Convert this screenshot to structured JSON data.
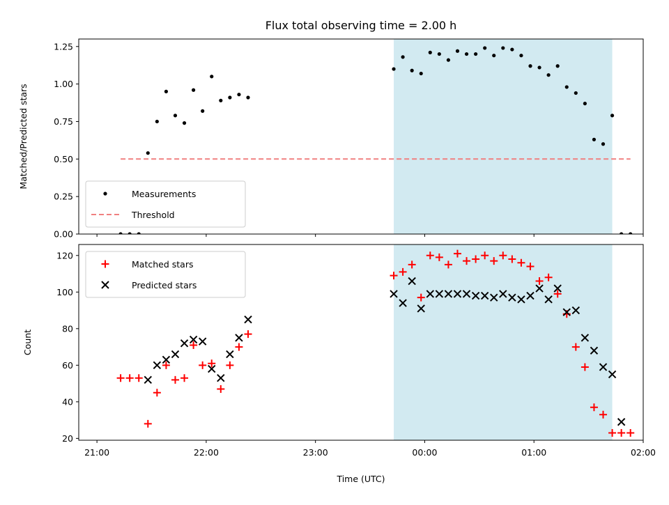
{
  "chart_data": {
    "title": "Flux total observing time = 2.00 h",
    "xlabel": "Time (UTC)",
    "x_tick_labels": [
      "21:00",
      "22:00",
      "23:00",
      "00:00",
      "01:00",
      "02:00"
    ],
    "shaded_interval": {
      "start": "23:43",
      "end": "01:43",
      "color": "#add8e6"
    },
    "panels": [
      {
        "type": "scatter",
        "ylabel": "Matched/Predicted stars",
        "ylim": [
          0,
          1.3
        ],
        "y_tick_labels": [
          "0.00",
          "0.25",
          "0.50",
          "0.75",
          "1.00",
          "1.25"
        ],
        "y_ticks": [
          0,
          0.25,
          0.5,
          0.75,
          1.0,
          1.25
        ],
        "legend_position": "lower-left",
        "series": [
          {
            "name": "Measurements",
            "marker": "dot",
            "color": "#000000",
            "points": [
              [
                "21:13",
                0
              ],
              [
                "21:18",
                0
              ],
              [
                "21:23",
                0
              ],
              [
                "21:28",
                0.54
              ],
              [
                "21:33",
                0.75
              ],
              [
                "21:38",
                0.95
              ],
              [
                "21:43",
                0.79
              ],
              [
                "21:48",
                0.74
              ],
              [
                "21:53",
                0.96
              ],
              [
                "21:58",
                0.82
              ],
              [
                "22:03",
                1.05
              ],
              [
                "22:08",
                0.89
              ],
              [
                "22:13",
                0.91
              ],
              [
                "22:18",
                0.93
              ],
              [
                "22:23",
                0.91
              ],
              [
                "23:43",
                1.1
              ],
              [
                "23:48",
                1.18
              ],
              [
                "23:53",
                1.09
              ],
              [
                "23:58",
                1.07
              ],
              [
                "00:03",
                1.21
              ],
              [
                "00:08",
                1.2
              ],
              [
                "00:13",
                1.16
              ],
              [
                "00:18",
                1.22
              ],
              [
                "00:23",
                1.2
              ],
              [
                "00:28",
                1.2
              ],
              [
                "00:33",
                1.24
              ],
              [
                "00:38",
                1.19
              ],
              [
                "00:43",
                1.24
              ],
              [
                "00:48",
                1.23
              ],
              [
                "00:53",
                1.19
              ],
              [
                "00:58",
                1.12
              ],
              [
                "01:03",
                1.11
              ],
              [
                "01:08",
                1.06
              ],
              [
                "01:13",
                1.12
              ],
              [
                "01:18",
                0.98
              ],
              [
                "01:23",
                0.94
              ],
              [
                "01:28",
                0.87
              ],
              [
                "01:33",
                0.63
              ],
              [
                "01:38",
                0.6
              ],
              [
                "01:43",
                0.79
              ],
              [
                "01:48",
                0
              ],
              [
                "01:53",
                0
              ]
            ]
          },
          {
            "name": "Threshold",
            "marker": "dashed-line",
            "color": "#f08080",
            "points": [
              [
                "21:13",
                0.5
              ],
              [
                "01:53",
                0.5
              ]
            ]
          }
        ]
      },
      {
        "type": "scatter",
        "ylabel": "Count",
        "ylim": [
          19,
          126
        ],
        "y_tick_labels": [
          "20",
          "40",
          "60",
          "80",
          "100",
          "120"
        ],
        "y_ticks": [
          20,
          40,
          60,
          80,
          100,
          120
        ],
        "legend_position": "upper-left",
        "series": [
          {
            "name": "Matched stars",
            "marker": "plus",
            "color": "#ff0000",
            "points": [
              [
                "21:13",
                53
              ],
              [
                "21:18",
                53
              ],
              [
                "21:23",
                53
              ],
              [
                "21:28",
                28
              ],
              [
                "21:33",
                45
              ],
              [
                "21:38",
                60
              ],
              [
                "21:43",
                52
              ],
              [
                "21:48",
                53
              ],
              [
                "21:53",
                71
              ],
              [
                "21:58",
                60
              ],
              [
                "22:03",
                61
              ],
              [
                "22:08",
                47
              ],
              [
                "22:13",
                60
              ],
              [
                "22:18",
                70
              ],
              [
                "22:23",
                77
              ],
              [
                "23:43",
                109
              ],
              [
                "23:48",
                111
              ],
              [
                "23:53",
                115
              ],
              [
                "23:58",
                97
              ],
              [
                "00:03",
                120
              ],
              [
                "00:08",
                119
              ],
              [
                "00:13",
                115
              ],
              [
                "00:18",
                121
              ],
              [
                "00:23",
                117
              ],
              [
                "00:28",
                118
              ],
              [
                "00:33",
                120
              ],
              [
                "00:38",
                117
              ],
              [
                "00:43",
                120
              ],
              [
                "00:48",
                118
              ],
              [
                "00:53",
                116
              ],
              [
                "00:58",
                114
              ],
              [
                "01:03",
                106
              ],
              [
                "01:08",
                108
              ],
              [
                "01:13",
                99
              ],
              [
                "01:18",
                88
              ],
              [
                "01:23",
                70
              ],
              [
                "01:28",
                59
              ],
              [
                "01:33",
                37
              ],
              [
                "01:38",
                33
              ],
              [
                "01:43",
                23
              ],
              [
                "01:48",
                23
              ],
              [
                "01:53",
                23
              ]
            ]
          },
          {
            "name": "Predicted stars",
            "marker": "x",
            "color": "#000000",
            "points": [
              [
                "21:28",
                52
              ],
              [
                "21:33",
                60
              ],
              [
                "21:38",
                63
              ],
              [
                "21:43",
                66
              ],
              [
                "21:48",
                72
              ],
              [
                "21:53",
                74
              ],
              [
                "21:58",
                73
              ],
              [
                "22:03",
                58
              ],
              [
                "22:08",
                53
              ],
              [
                "22:13",
                66
              ],
              [
                "22:18",
                75
              ],
              [
                "22:23",
                85
              ],
              [
                "23:43",
                99
              ],
              [
                "23:48",
                94
              ],
              [
                "23:53",
                106
              ],
              [
                "23:58",
                91
              ],
              [
                "00:03",
                99
              ],
              [
                "00:08",
                99
              ],
              [
                "00:13",
                99
              ],
              [
                "00:18",
                99
              ],
              [
                "00:23",
                99
              ],
              [
                "00:28",
                98
              ],
              [
                "00:33",
                98
              ],
              [
                "00:38",
                97
              ],
              [
                "00:43",
                99
              ],
              [
                "00:48",
                97
              ],
              [
                "00:53",
                96
              ],
              [
                "00:58",
                98
              ],
              [
                "01:03",
                102
              ],
              [
                "01:08",
                96
              ],
              [
                "01:13",
                102
              ],
              [
                "01:18",
                89
              ],
              [
                "01:23",
                90
              ],
              [
                "01:28",
                75
              ],
              [
                "01:33",
                68
              ],
              [
                "01:38",
                59
              ],
              [
                "01:43",
                55
              ],
              [
                "01:48",
                29
              ]
            ]
          }
        ]
      }
    ]
  }
}
